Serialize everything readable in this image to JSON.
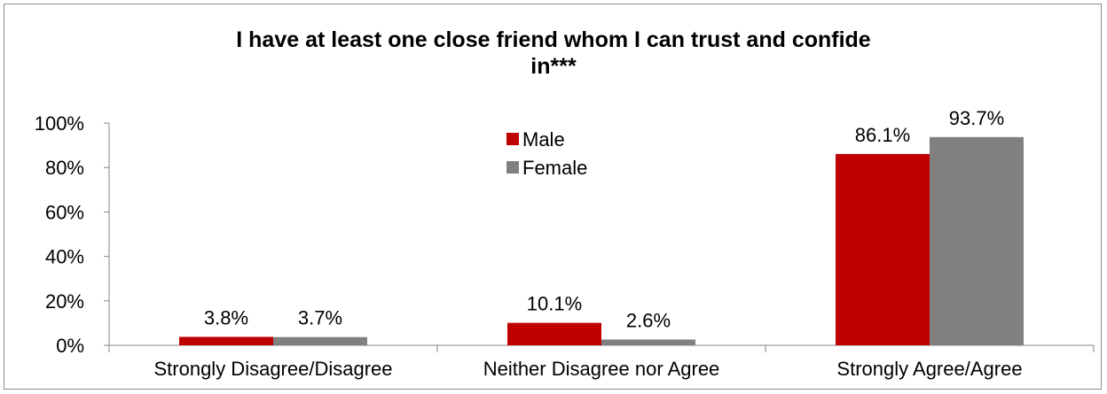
{
  "chart_data": {
    "type": "bar",
    "title_lines": [
      "I have at least one close friend whom I can trust and confide",
      "in***"
    ],
    "categories": [
      "Strongly Disagree/Disagree",
      "Neither Disagree nor Agree",
      "Strongly Agree/Agree"
    ],
    "series": [
      {
        "name": "Male",
        "color": "#c00000",
        "values": [
          3.8,
          10.1,
          86.1
        ],
        "labels": [
          "3.8%",
          "10.1%",
          "86.1%"
        ]
      },
      {
        "name": "Female",
        "color": "#808080",
        "values": [
          3.7,
          2.6,
          93.7
        ],
        "labels": [
          "3.7%",
          "2.6%",
          "93.7%"
        ]
      }
    ],
    "ylim": [
      0,
      100
    ],
    "yticks": [
      0,
      20,
      40,
      60,
      80,
      100
    ],
    "ytick_labels": [
      "0%",
      "20%",
      "40%",
      "60%",
      "80%",
      "100%"
    ],
    "grid": false,
    "legend": "upper-center"
  }
}
